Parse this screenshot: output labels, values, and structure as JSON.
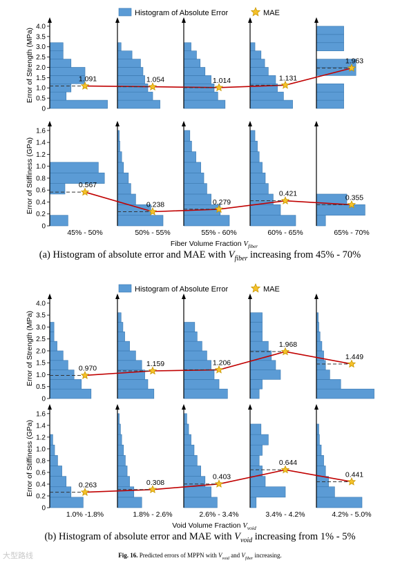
{
  "chart_data": [
    {
      "type": "bar",
      "legend": {
        "histogram_label": "Histogram of Absolute Error",
        "mae_label": "MAE",
        "position": "top"
      },
      "xlabel": "Fiber Volume Fraction",
      "xlabel_var": "V",
      "xlabel_sub": "fiber",
      "categories": [
        "45% - 50%",
        "50% - 55%",
        "55% - 60%",
        "60% - 65%",
        "65% - 70%"
      ],
      "panels": [
        {
          "ylabel": "Error of Strength (MPa)",
          "ylim": [
            0,
            4.2
          ],
          "yticks": [
            "0",
            "0.5",
            "1.0",
            "1.5",
            "2.0",
            "2.5",
            "3.0",
            "3.5",
            "4.0"
          ],
          "mae": [
            1.091,
            1.054,
            1.014,
            1.131,
            1.963
          ],
          "mae_labels": [
            "1.091",
            "1.054",
            "1.014",
            "1.131",
            "1.963"
          ],
          "histograms": [
            [
              0.95,
              0.27,
              0.35,
              0.58,
              0.58,
              0.35,
              0.22,
              0.22,
              0,
              0
            ],
            [
              0.7,
              0.58,
              0.5,
              0.45,
              0.42,
              0.38,
              0.24,
              0.06,
              0,
              0
            ],
            [
              0.68,
              0.56,
              0.5,
              0.45,
              0.35,
              0.27,
              0.21,
              0.12,
              0,
              0
            ],
            [
              0.7,
              0.55,
              0.45,
              0.42,
              0.3,
              0.24,
              0.18,
              0.08,
              0,
              0
            ],
            [
              0.45,
              0.45,
              0.45,
              0,
              0.65,
              0.65,
              0,
              0.45,
              0.45,
              0.45
            ]
          ]
        },
        {
          "ylabel": "Error of Stiffiness (GPa)",
          "ylim": [
            0,
            1.68
          ],
          "yticks": [
            "0",
            "0.2",
            "0.4",
            "0.6",
            "0.8",
            "1.0",
            "1.2",
            "1.4",
            "1.6"
          ],
          "mae": [
            0.567,
            0.238,
            0.279,
            0.421,
            0.355
          ],
          "mae_labels": [
            "0.567",
            "0.238",
            "0.279",
            "0.421",
            "0.355"
          ],
          "histograms": [
            [
              0.3,
              0,
              0,
              0.25,
              0.9,
              0.8,
              0,
              0,
              0
            ],
            [
              0.75,
              0.55,
              0.3,
              0.22,
              0.18,
              0.1,
              0.07,
              0.04,
              0.03
            ],
            [
              0.75,
              0.6,
              0.45,
              0.38,
              0.33,
              0.28,
              0.2,
              0.13,
              0.1
            ],
            [
              0.75,
              0.5,
              0.38,
              0.3,
              0.25,
              0.2,
              0.15,
              0.12,
              0.08
            ],
            [
              0.15,
              0.8,
              0.5,
              0,
              0,
              0,
              0,
              0,
              0
            ]
          ]
        }
      ],
      "caption_prefix": "(a) Histogram of absolute error and MAE with",
      "caption_var": "V",
      "caption_sub": "fiber",
      "caption_suffix": "increasing from 45% - 70%"
    },
    {
      "type": "bar",
      "legend": {
        "histogram_label": "Histogram of Absolute Error",
        "mae_label": "MAE",
        "position": "top"
      },
      "xlabel": "Void Volume Fraction",
      "xlabel_var": "V",
      "xlabel_sub": "void",
      "categories": [
        "1.0% -1.8%",
        "1.8% - 2.6%",
        "2.6% - 3.4%",
        "3.4% - 4.2%",
        "4.2% - 5.0%"
      ],
      "panels": [
        {
          "ylabel": "Error of Strength (MPa)",
          "ylim": [
            0,
            4.2
          ],
          "yticks": [
            "0",
            "0.5",
            "1.0",
            "1.5",
            "2.0",
            "2.5",
            "3.0",
            "3.5",
            "4.0"
          ],
          "mae": [
            0.97,
            1.159,
            1.206,
            1.968,
            1.449
          ],
          "mae_labels": [
            "0.970",
            "1.159",
            "1.206",
            "1.968",
            "1.449"
          ],
          "histograms": [
            [
              0.68,
              0.52,
              0.4,
              0.3,
              0.22,
              0.12,
              0.07,
              0.07,
              0,
              0
            ],
            [
              0.6,
              0.5,
              0.45,
              0.4,
              0.3,
              0.2,
              0.12,
              0.09,
              0.06,
              0
            ],
            [
              0.72,
              0.58,
              0.5,
              0.45,
              0.38,
              0.3,
              0.22,
              0.18,
              0,
              0
            ],
            [
              0.15,
              0.2,
              0.5,
              0.42,
              0.35,
              0.3,
              0.2,
              0.2,
              0.2,
              0
            ],
            [
              0.95,
              0.4,
              0.22,
              0.15,
              0.12,
              0.09,
              0.06,
              0.04,
              0.03,
              0
            ]
          ]
        },
        {
          "ylabel": "Error of Stiffiness (GPa)",
          "ylim": [
            0,
            1.68
          ],
          "yticks": [
            "0",
            "0.2",
            "0.4",
            "0.6",
            "0.8",
            "1.0",
            "1.2",
            "1.4",
            "1.6"
          ],
          "mae": [
            0.263,
            0.308,
            0.403,
            0.644,
            0.441
          ],
          "mae_labels": [
            "0.263",
            "0.308",
            "0.403",
            "0.644",
            "0.441"
          ],
          "histograms": [
            [
              0.55,
              0.35,
              0.27,
              0.2,
              0.13,
              0.08,
              0.05,
              0,
              0
            ],
            [
              0.4,
              0.27,
              0.2,
              0.16,
              0.13,
              0.1,
              0.07,
              0.05,
              0.03
            ],
            [
              0.55,
              0.45,
              0.35,
              0.28,
              0.22,
              0.17,
              0.12,
              0.08,
              0.05
            ],
            [
              0.1,
              0.58,
              0.25,
              0.2,
              0.15,
              0.2,
              0.3,
              0.18,
              0
            ],
            [
              0.75,
              0.3,
              0.2,
              0.15,
              0.12,
              0.08,
              0.05,
              0.04,
              0
            ]
          ]
        }
      ],
      "caption_prefix": "(b) Histogram of absolute error and MAE with",
      "caption_var": "V",
      "caption_sub": "void",
      "caption_suffix": "increasing from 1% - 5%"
    }
  ],
  "colors": {
    "bar": "#5b9bd5",
    "bar_stroke": "#3a78b0",
    "mae_line": "#c00000",
    "star": "#f5c12a",
    "star_stroke": "#c89600",
    "dash": "#333333"
  },
  "figure_caption": {
    "label": "Fig. 16.",
    "text": "Predicted errors of MPPN with",
    "var1": "V",
    "sub1": "void",
    "and": "and",
    "var2": "V",
    "sub2": "fiber",
    "tail": "increasing."
  },
  "watermark": "大型路线"
}
